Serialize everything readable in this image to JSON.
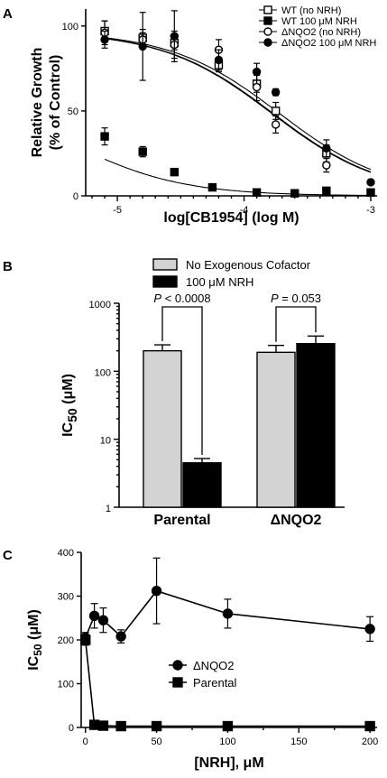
{
  "chart_data": [
    {
      "panel": "A",
      "type": "scatter",
      "xlabel": "log[CB1954] (log M)",
      "ylabel": [
        "Relative Growth",
        "(% of Control)"
      ],
      "xlim": [
        -5.25,
        -2.95
      ],
      "ylim": [
        0,
        110
      ],
      "xticks": [
        -5,
        -4,
        -3
      ],
      "xtick_labels": [
        "-5",
        "-4",
        "-3"
      ],
      "yticks": [
        0,
        50,
        100
      ],
      "ytick_labels": [
        "0",
        "50",
        "100"
      ],
      "legend_position": "top-right",
      "series": [
        {
          "name": "WT (no NRH)",
          "marker": "open-square",
          "x": [
            -5.1,
            -4.8,
            -4.55,
            -4.2,
            -3.9,
            -3.75,
            -3.35
          ],
          "y": [
            97,
            93,
            90,
            77,
            66,
            50,
            25
          ],
          "err": [
            6,
            5,
            4,
            4,
            5,
            5,
            5
          ],
          "fit": {
            "top": 97,
            "bottom": 0,
            "logIC50": -3.72,
            "hill": 1.0
          }
        },
        {
          "name": "WT 100 μM NRH",
          "marker": "filled-square",
          "x": [
            -5.1,
            -4.8,
            -4.55,
            -4.25,
            -3.9,
            -3.6,
            -3.35,
            -3.0
          ],
          "y": [
            35,
            26,
            14,
            5,
            2,
            1.5,
            3,
            2
          ],
          "err": [
            5,
            3,
            0,
            0,
            0,
            0,
            0,
            0
          ],
          "fit": {
            "top": 60,
            "bottom": 0,
            "logIC50": -5.35,
            "hill": 1.0
          }
        },
        {
          "name": "ΔNQO2 (no NRH)",
          "marker": "open-circle",
          "x": [
            -5.1,
            -4.8,
            -4.55,
            -4.2,
            -3.9,
            -3.75,
            -3.35
          ],
          "y": [
            96,
            92,
            89,
            86,
            64,
            42,
            18
          ],
          "err": [
            7,
            4,
            8,
            6,
            8,
            5,
            4
          ],
          "fit": {
            "top": 97,
            "bottom": 0,
            "logIC50": -3.78,
            "hill": 1.0
          }
        },
        {
          "name": "ΔNQO2 100 μM NRH",
          "marker": "filled-circle",
          "x": [
            -5.1,
            -4.8,
            -4.55,
            -4.2,
            -3.9,
            -3.75,
            -3.35,
            -3.0
          ],
          "y": [
            92,
            88,
            94,
            80,
            73,
            61,
            28,
            8
          ],
          "err": [
            5,
            20,
            15,
            6,
            5,
            2,
            5,
            0
          ],
          "fit": {
            "top": 97,
            "bottom": 0,
            "logIC50": -3.77,
            "hill": 1.0
          }
        }
      ]
    },
    {
      "panel": "B",
      "type": "bar",
      "log_scale": true,
      "ylabel": "IC",
      "ylabel_sub": "50",
      "ylabel_unit": " (μM)",
      "ylim": [
        1,
        1000
      ],
      "yticks": [
        1,
        10,
        100,
        1000
      ],
      "ytick_labels": [
        "1",
        "10",
        "100",
        "1000"
      ],
      "categories": [
        "Parental",
        "ΔNQO2"
      ],
      "legend_position": "top",
      "series": [
        {
          "name": "No Exogenous Cofactor",
          "color": "#d3d3d3",
          "values": [
            200,
            190
          ],
          "err_hi": [
            245,
            240
          ]
        },
        {
          "name": "100 μM NRH",
          "color": "#000000",
          "values": [
            4.5,
            255
          ],
          "err_hi": [
            5.2,
            330
          ]
        }
      ],
      "annotations": [
        {
          "category": "Parental",
          "p_text": "P",
          "value_text": " < 0.0008"
        },
        {
          "category": "ΔNQO2",
          "p_text": "P",
          "value_text": " = 0.053"
        }
      ]
    },
    {
      "panel": "C",
      "type": "line",
      "xlabel": "[NRH], μM",
      "ylabel": "IC",
      "ylabel_sub": "50",
      "ylabel_unit": " (μM)",
      "xlim": [
        -3,
        205
      ],
      "ylim": [
        0,
        400
      ],
      "xticks": [
        0,
        50,
        100,
        150,
        200
      ],
      "xtick_labels": [
        "0",
        "50",
        "100",
        "150",
        "200"
      ],
      "yticks": [
        0,
        100,
        200,
        300,
        400
      ],
      "ytick_labels": [
        "0",
        "100",
        "200",
        "300",
        "400"
      ],
      "legend_position": "center",
      "series": [
        {
          "name": "ΔNQO2",
          "marker": "filled-circle",
          "x": [
            0,
            6.25,
            12.5,
            25,
            50,
            100,
            200
          ],
          "y": [
            205,
            255,
            245,
            208,
            312,
            260,
            225
          ],
          "err": [
            12,
            28,
            28,
            15,
            75,
            33,
            28
          ]
        },
        {
          "name": "Parental",
          "marker": "filled-square",
          "x": [
            0,
            6.25,
            12.5,
            25,
            50,
            100,
            200
          ],
          "y": [
            200,
            6,
            4,
            3,
            3,
            3,
            3
          ],
          "err": [
            12,
            0,
            0,
            0,
            0,
            0,
            0
          ]
        }
      ]
    }
  ],
  "panel_labels": [
    "A",
    "B",
    "C"
  ]
}
